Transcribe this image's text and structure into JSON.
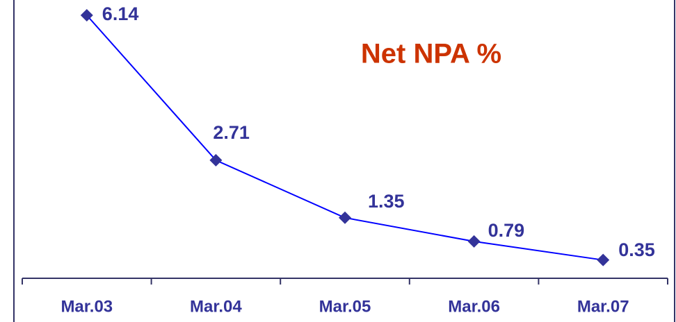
{
  "chart_data": {
    "type": "line",
    "title": "Net NPA %",
    "categories": [
      "Mar.03",
      "Mar.04",
      "Mar.05",
      "Mar.06",
      "Mar.07"
    ],
    "values": [
      6.14,
      2.71,
      1.35,
      0.79,
      0.35
    ],
    "color": "#0000ff",
    "marker_color": "#333399"
  }
}
